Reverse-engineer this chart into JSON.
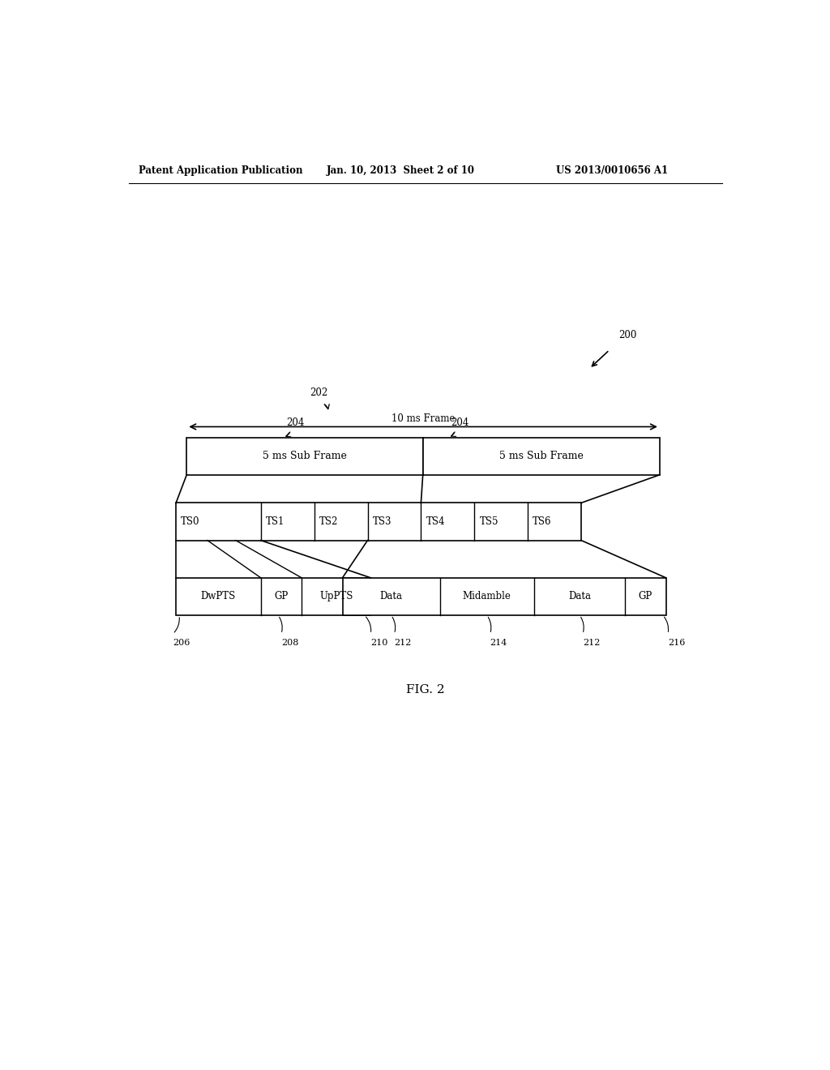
{
  "bg_color": "#ffffff",
  "header_left": "Patent Application Publication",
  "header_mid": "Jan. 10, 2013  Sheet 2 of 10",
  "header_right": "US 2013/0010656 A1",
  "fig_label": "FIG. 2",
  "ref_200": "200",
  "ref_202": "202",
  "ref_204a": "204",
  "ref_204b": "204",
  "ref_206": "206",
  "ref_208": "208",
  "ref_210": "210",
  "ref_212a": "212",
  "ref_214": "214",
  "ref_212b": "212",
  "ref_216": "216",
  "arrow_10ms_label": "10 ms Frame",
  "subframe_label1": "5 ms Sub Frame",
  "subframe_label2": "5 ms Sub Frame",
  "ts_labels": [
    "TS0",
    "TS1",
    "TS2",
    "TS3",
    "TS4",
    "TS5",
    "TS6"
  ],
  "bottom_left_labels": [
    "DwPTS",
    "GP",
    "UpPTS"
  ],
  "bottom_right_labels": [
    "Data",
    "Midamble",
    "Data",
    "GP"
  ]
}
